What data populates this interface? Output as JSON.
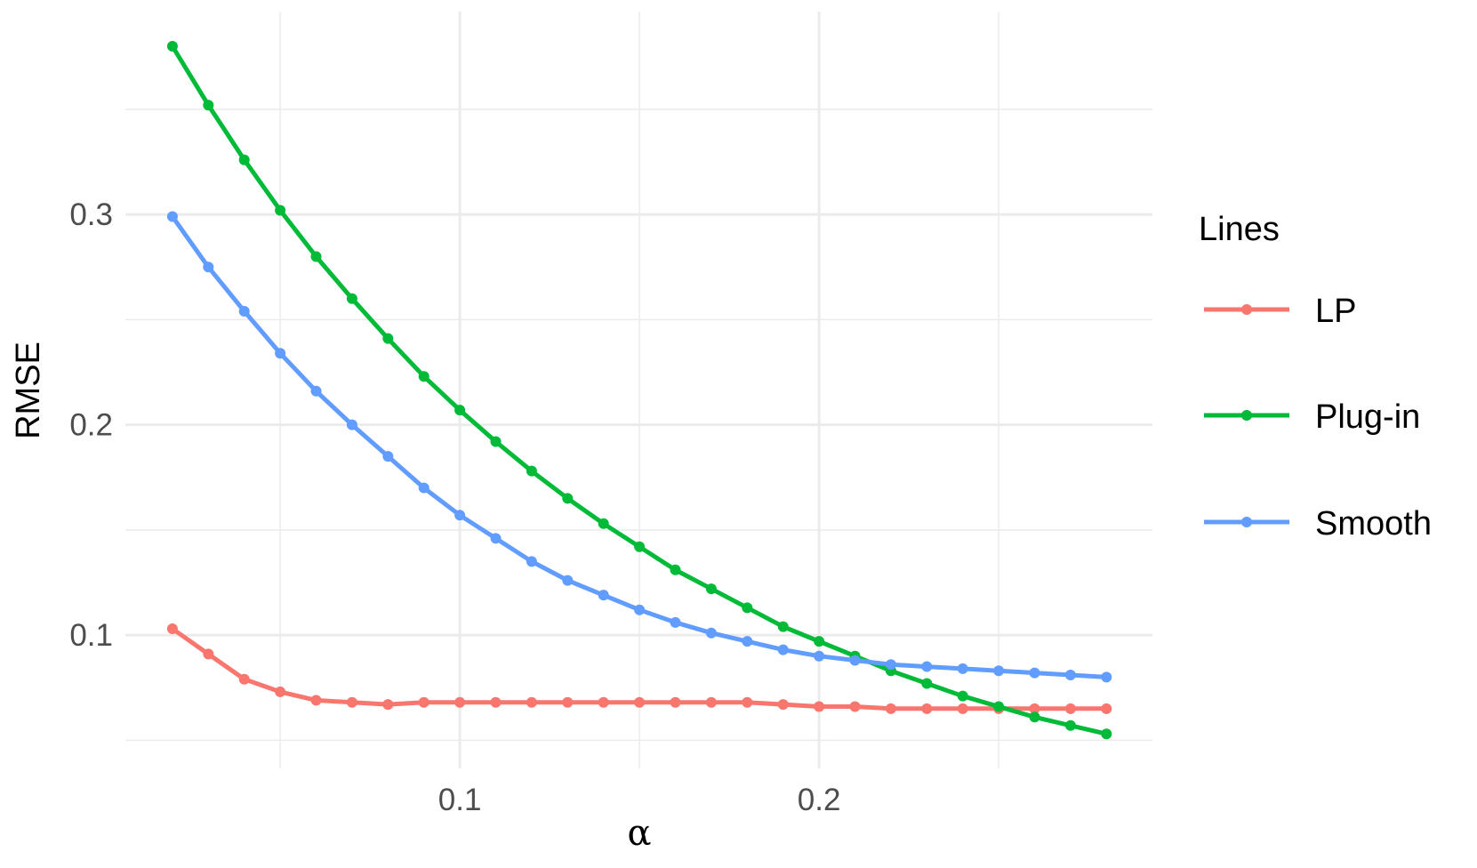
{
  "chart_data": {
    "type": "line",
    "title": "",
    "xlabel": "α",
    "ylabel": "RMSE",
    "x": [
      0.02,
      0.03,
      0.04,
      0.05,
      0.06,
      0.07,
      0.08,
      0.09,
      0.1,
      0.11,
      0.12,
      0.13,
      0.14,
      0.15,
      0.16,
      0.17,
      0.18,
      0.19,
      0.2,
      0.21,
      0.22,
      0.23,
      0.24,
      0.25,
      0.26,
      0.27,
      0.28
    ],
    "series": [
      {
        "name": "LP",
        "color": "#F8766D",
        "values": [
          0.103,
          0.091,
          0.079,
          0.073,
          0.069,
          0.068,
          0.067,
          0.068,
          0.068,
          0.068,
          0.068,
          0.068,
          0.068,
          0.068,
          0.068,
          0.068,
          0.068,
          0.067,
          0.066,
          0.066,
          0.065,
          0.065,
          0.065,
          0.065,
          0.065,
          0.065,
          0.065
        ]
      },
      {
        "name": "Plug-in",
        "color": "#00BA38",
        "values": [
          0.38,
          0.352,
          0.326,
          0.302,
          0.28,
          0.26,
          0.241,
          0.223,
          0.207,
          0.192,
          0.178,
          0.165,
          0.153,
          0.142,
          0.131,
          0.122,
          0.113,
          0.104,
          0.097,
          0.09,
          0.083,
          0.077,
          0.071,
          0.066,
          0.061,
          0.057,
          0.053
        ]
      },
      {
        "name": "Smooth",
        "color": "#619CFF",
        "values": [
          0.299,
          0.275,
          0.254,
          0.234,
          0.216,
          0.2,
          0.185,
          0.17,
          0.157,
          0.146,
          0.135,
          0.126,
          0.119,
          0.112,
          0.106,
          0.101,
          0.097,
          0.093,
          0.09,
          0.088,
          0.086,
          0.085,
          0.084,
          0.083,
          0.082,
          0.081,
          0.08
        ]
      }
    ],
    "xlim": [
      0.0069,
      0.2928
    ],
    "ylim": [
      0.0366,
      0.3965
    ],
    "x_ticks": [
      0.1,
      0.2
    ],
    "x_tick_labels": [
      "0.1",
      "0.2"
    ],
    "x_minor": [
      0.05,
      0.15,
      0.25
    ],
    "y_ticks": [
      0.1,
      0.2,
      0.3
    ],
    "y_tick_labels": [
      "0.1",
      "0.2",
      "0.3"
    ],
    "y_minor": [
      0.05,
      0.15,
      0.25,
      0.35
    ],
    "grid": true,
    "legend_title": "Lines",
    "legend_position": "right"
  },
  "legend": {
    "title": "Lines",
    "items": [
      "LP",
      "Plug-in",
      "Smooth"
    ]
  },
  "axes": {
    "xlabel": "α",
    "ylabel": "RMSE"
  }
}
